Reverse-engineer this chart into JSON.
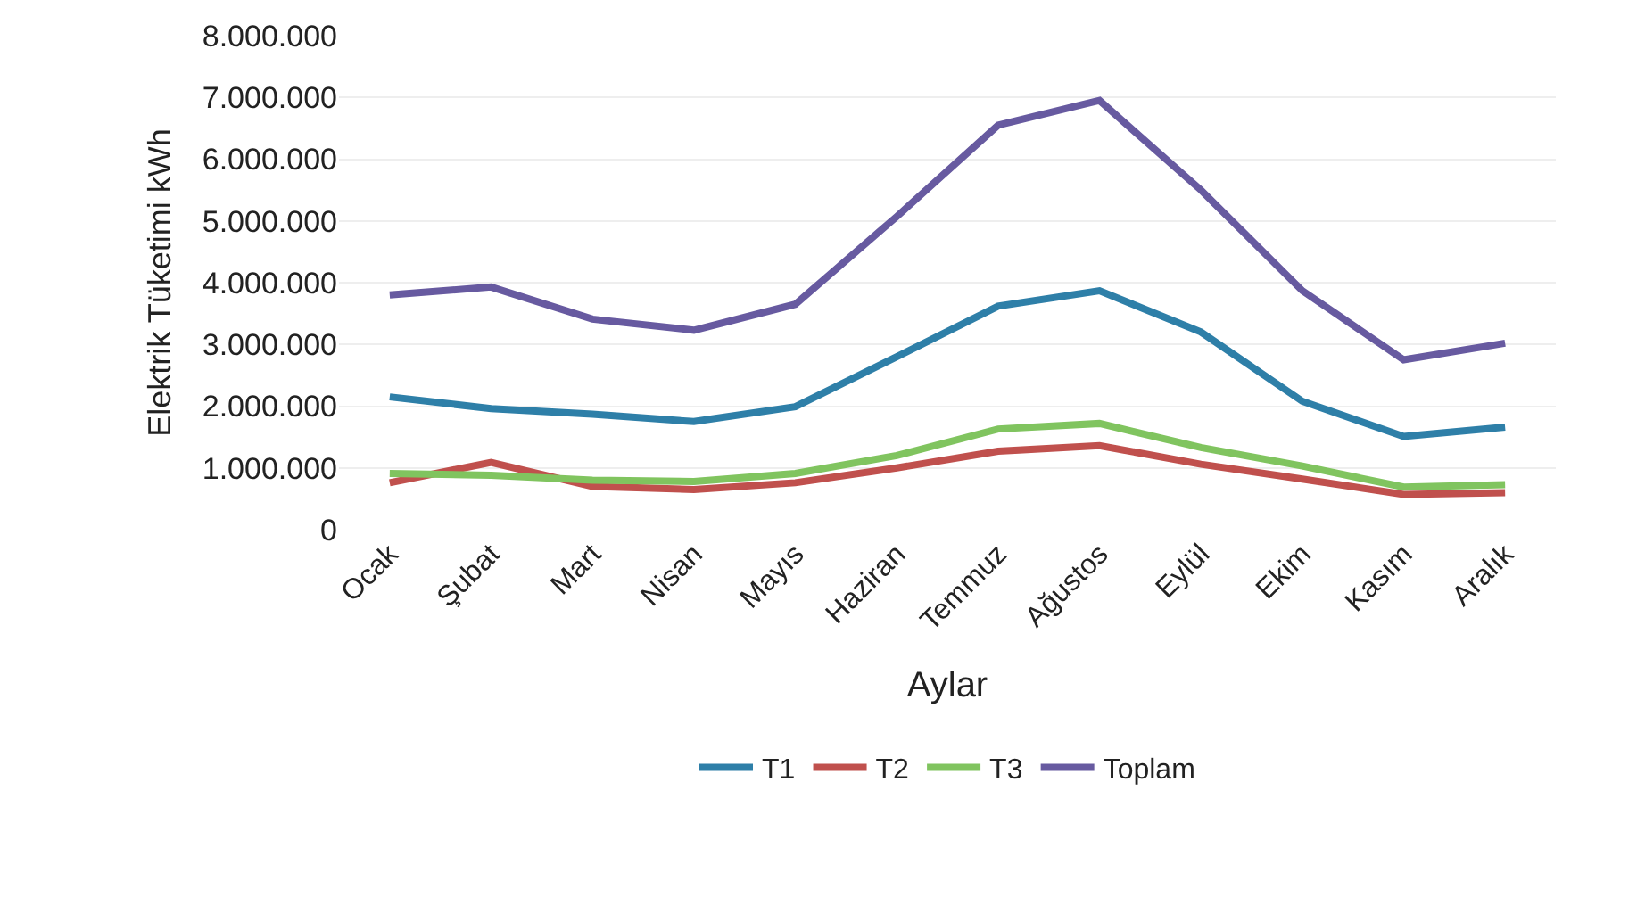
{
  "chart_data": {
    "type": "line",
    "xlabel": "Aylar",
    "ylabel": "Elektrik Tüketimi kWh",
    "categories": [
      "Ocak",
      "Şubat",
      "Mart",
      "Nisan",
      "Mayıs",
      "Haziran",
      "Temmuz",
      "Ağustos",
      "Eylül",
      "Ekim",
      "Kasım",
      "Aralık"
    ],
    "series": [
      {
        "name": "T1",
        "color": "#2e7fa8",
        "values": [
          2150000,
          1960000,
          1870000,
          1750000,
          1990000,
          2800000,
          3620000,
          3870000,
          3200000,
          2080000,
          1510000,
          1660000
        ]
      },
      {
        "name": "T2",
        "color": "#c0504d",
        "values": [
          760000,
          1090000,
          700000,
          650000,
          760000,
          1000000,
          1270000,
          1360000,
          1060000,
          820000,
          570000,
          600000
        ]
      },
      {
        "name": "T3",
        "color": "#80c45f",
        "values": [
          910000,
          880000,
          800000,
          780000,
          910000,
          1200000,
          1630000,
          1720000,
          1330000,
          1030000,
          690000,
          730000
        ]
      },
      {
        "name": "Toplam",
        "color": "#675aa0",
        "values": [
          3800000,
          3930000,
          3410000,
          3230000,
          3650000,
          5070000,
          6550000,
          6950000,
          5500000,
          3870000,
          2750000,
          3020000
        ]
      }
    ],
    "ylim": [
      0,
      8000000
    ],
    "yticks": [
      {
        "value": 0,
        "label": "0"
      },
      {
        "value": 1000000,
        "label": "1.000.000"
      },
      {
        "value": 2000000,
        "label": "2.000.000"
      },
      {
        "value": 3000000,
        "label": "3.000.000"
      },
      {
        "value": 4000000,
        "label": "4.000.000"
      },
      {
        "value": 5000000,
        "label": "5.000.000"
      },
      {
        "value": 6000000,
        "label": "6.000.000"
      },
      {
        "value": 7000000,
        "label": "7.000.000"
      },
      {
        "value": 8000000,
        "label": "8.000.000"
      }
    ],
    "grid": "y",
    "legend": "bottom",
    "marker": "none",
    "line_style": "solid"
  }
}
